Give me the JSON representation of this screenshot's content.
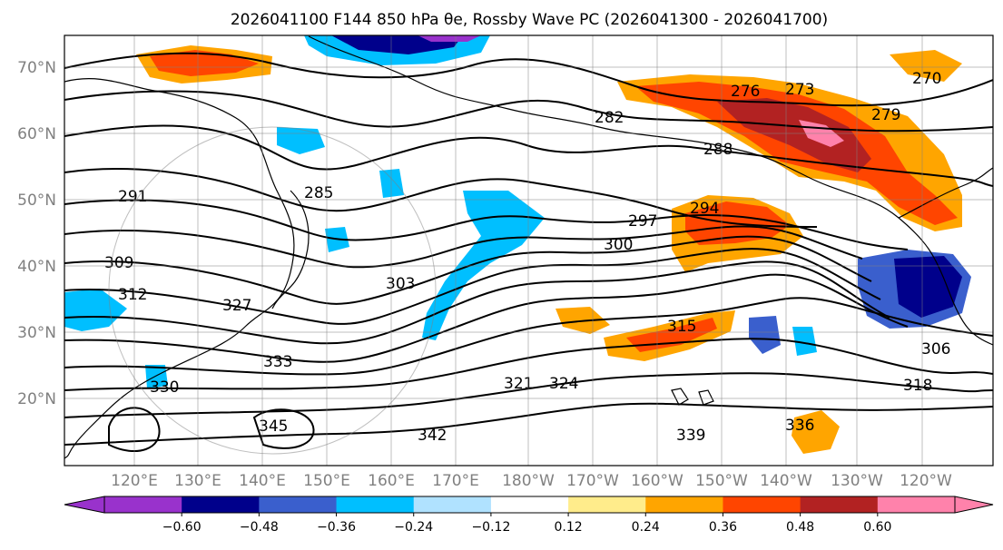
{
  "title": "2026041100 F144 850 hPa θe, Rossby Wave PC (2026041300 - 2026041700)",
  "colors": {
    "shading_neg": [
      "#9932cc",
      "#00008b",
      "#3a5fcd",
      "#00bfff",
      "#b0e2ff"
    ],
    "shading_pos": [
      "#ffec8b",
      "#ffa500",
      "#ff4500",
      "#b22222",
      "#ff82ab"
    ],
    "contour": "#000000",
    "grid": "#808080"
  },
  "lat_labels": [
    "70°N",
    "60°N",
    "50°N",
    "40°N",
    "30°N",
    "20°N"
  ],
  "lon_labels": [
    "120°E",
    "130°E",
    "140°E",
    "150°E",
    "160°E",
    "170°E",
    "180°W",
    "170°W",
    "160°W",
    "150°W",
    "140°W",
    "130°W",
    "120°W"
  ],
  "colorbar": {
    "ticks": [
      "−0.60",
      "−0.48",
      "−0.36",
      "−0.24",
      "−0.12",
      "0.12",
      "0.24",
      "0.36",
      "0.48",
      "0.60"
    ],
    "colors": [
      "#9932cc",
      "#00008b",
      "#3a5fcd",
      "#00bfff",
      "#b0e2ff",
      "#ffffff",
      "#ffec8b",
      "#ffa500",
      "#ff4500",
      "#b22222",
      "#ff82ab"
    ]
  },
  "contour_labels": [
    "276",
    "273",
    "282",
    "288",
    "291",
    "294",
    "297",
    "300",
    "303",
    "306",
    "309",
    "312",
    "315",
    "318",
    "321",
    "324",
    "327",
    "330",
    "333",
    "336",
    "339",
    "342",
    "345",
    "285",
    "279",
    "270"
  ]
}
